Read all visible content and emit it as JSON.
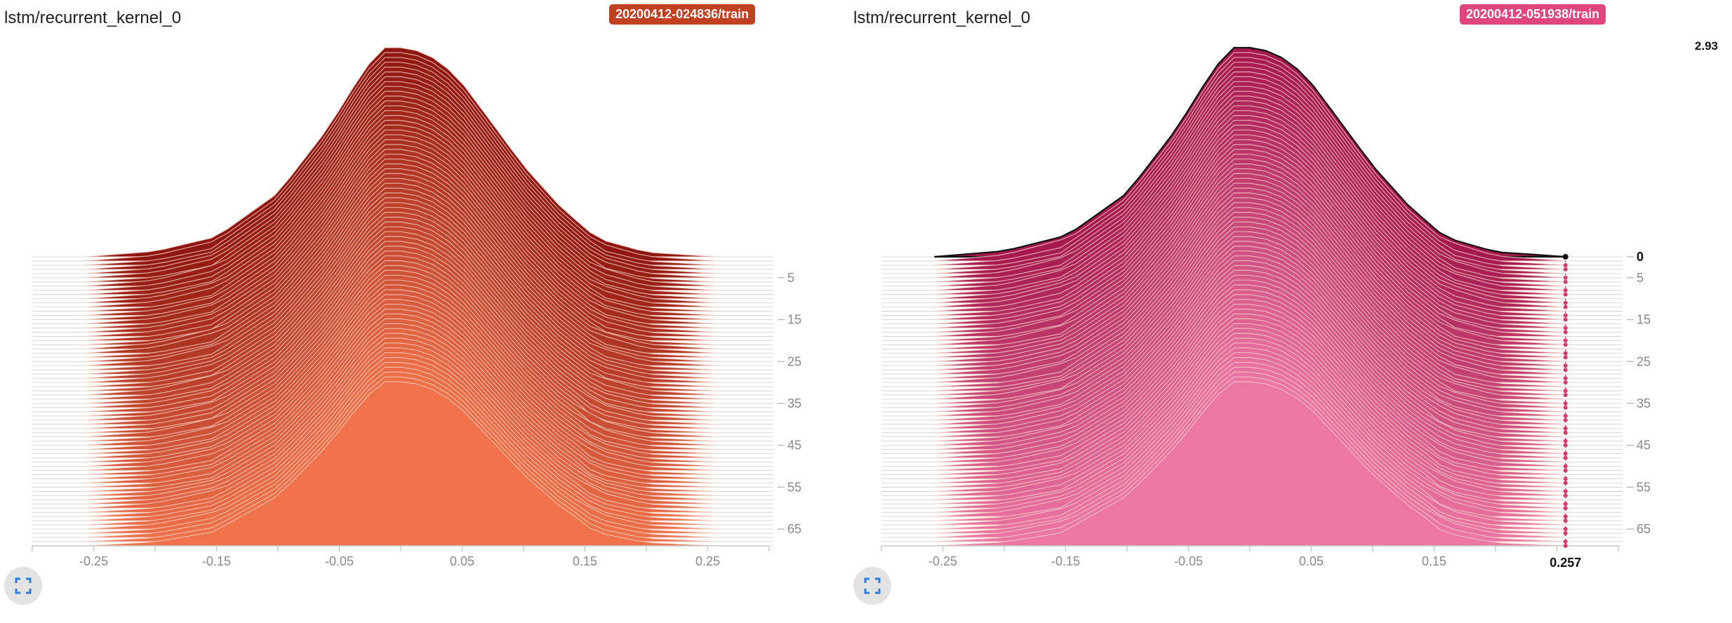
{
  "cards": [
    {
      "title": "lstm/recurrent_kernel_0",
      "run": "20200412-024836/train",
      "badge_color": "#c0401f",
      "expand_icon": "fullscreen-icon",
      "hover": null
    },
    {
      "title": "lstm/recurrent_kernel_0",
      "run": "20200412-051938/train",
      "badge_color": "#e0457b",
      "expand_icon": "fullscreen-icon",
      "hover": {
        "x_value": "0.257",
        "step_value": "0",
        "max_value": "2.93"
      }
    }
  ],
  "chart_data": [
    {
      "type": "area",
      "subtype": "histogram-offset",
      "title": "lstm/recurrent_kernel_0",
      "legend": [
        "20200412-024836/train"
      ],
      "xlim": [
        -0.3,
        0.3
      ],
      "x_ticks": [
        "-0.25",
        "-0.15",
        "-0.05",
        "0.05",
        "0.15",
        "0.25"
      ],
      "y_ticks": [
        "5",
        "15",
        "25",
        "35",
        "45",
        "55",
        "65"
      ],
      "step_range": [
        0,
        69
      ],
      "density_peak_at_step0": 2.93,
      "density_at_last_step": 2.3,
      "distribution_profile": {
        "x": [
          -0.257,
          -0.2,
          -0.15,
          -0.1,
          -0.06,
          -0.03,
          -0.015,
          0.0,
          0.02,
          0.045,
          0.07,
          0.1,
          0.13,
          0.16,
          0.2,
          0.257
        ],
        "density": [
          0.0,
          0.06,
          0.22,
          0.7,
          1.4,
          2.05,
          2.3,
          2.3,
          2.25,
          2.0,
          1.55,
          1.0,
          0.55,
          0.2,
          0.05,
          0.0
        ]
      },
      "color_step0": "#8f1610",
      "color_last_step": "#f0724a"
    },
    {
      "type": "area",
      "subtype": "histogram-offset",
      "title": "lstm/recurrent_kernel_0",
      "legend": [
        "20200412-051938/train"
      ],
      "xlim": [
        -0.3,
        0.3
      ],
      "x_ticks": [
        "-0.25",
        "-0.15",
        "-0.05",
        "0.05",
        "0.15"
      ],
      "y_ticks": [
        "0",
        "5",
        "15",
        "25",
        "35",
        "45",
        "55",
        "65"
      ],
      "step_range": [
        0,
        69
      ],
      "density_peak_at_step0": 2.93,
      "density_at_last_step": 2.3,
      "distribution_profile": {
        "x": [
          -0.257,
          -0.2,
          -0.15,
          -0.1,
          -0.06,
          -0.03,
          -0.015,
          0.0,
          0.02,
          0.045,
          0.07,
          0.1,
          0.13,
          0.16,
          0.2,
          0.257
        ],
        "density": [
          0.0,
          0.06,
          0.22,
          0.7,
          1.4,
          2.05,
          2.3,
          2.3,
          2.25,
          2.0,
          1.55,
          1.0,
          0.55,
          0.2,
          0.05,
          0.0
        ]
      },
      "color_step0": "#a5184e",
      "color_last_step": "#ec76a4",
      "highlighted_step": 0,
      "highlighted_x": 0.257
    }
  ]
}
